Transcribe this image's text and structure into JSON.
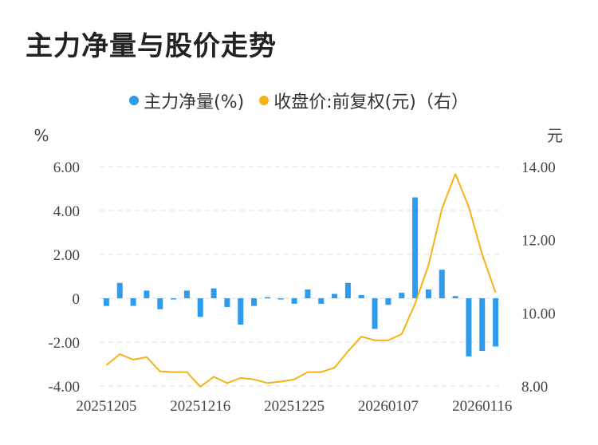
{
  "title": "主力净量与股价走势",
  "legend": {
    "main": "主力净量(%)",
    "price": "收盘价:前复权(元)（右）"
  },
  "colors": {
    "bar": "#2f9bed",
    "line": "#f5b216",
    "grid": "#dddddd"
  },
  "chart_data": {
    "type": "bar+line",
    "left_unit": "%",
    "right_unit": "元",
    "left_axis": {
      "ticks": [
        "6.00",
        "4.00",
        "2.00",
        "0",
        "-2.00",
        "-4.00"
      ],
      "ylim": [
        -4,
        6
      ]
    },
    "right_axis": {
      "ticks": [
        "14.00",
        "12.00",
        "10.00",
        "8.00"
      ],
      "ylim": [
        8,
        14
      ]
    },
    "x_tick_labels": [
      "20251205",
      "20251216",
      "20251225",
      "20260107",
      "20260116"
    ],
    "x_tick_indices": [
      0,
      7,
      14,
      21,
      28
    ],
    "series": [
      {
        "name": "主力净量(%)",
        "type": "bar",
        "values": [
          -0.35,
          0.7,
          -0.35,
          0.35,
          -0.5,
          0.0,
          0.35,
          -0.85,
          0.45,
          -0.4,
          -1.2,
          -0.35,
          0.05,
          -0.05,
          -0.25,
          0.4,
          -0.25,
          0.2,
          0.7,
          0.15,
          -1.4,
          -0.3,
          0.25,
          4.6,
          0.4,
          1.3,
          0.1,
          -2.65,
          -2.4,
          -2.2
        ]
      },
      {
        "name": "收盘价:前复权(元)（右）",
        "type": "line",
        "values": [
          8.57,
          8.87,
          8.72,
          8.79,
          8.4,
          8.38,
          8.38,
          7.98,
          8.25,
          8.08,
          8.22,
          8.18,
          8.08,
          8.12,
          8.18,
          8.38,
          8.38,
          8.5,
          8.95,
          9.35,
          9.25,
          9.25,
          9.42,
          10.25,
          11.3,
          12.85,
          13.8,
          12.9,
          11.6,
          10.55
        ]
      }
    ]
  }
}
